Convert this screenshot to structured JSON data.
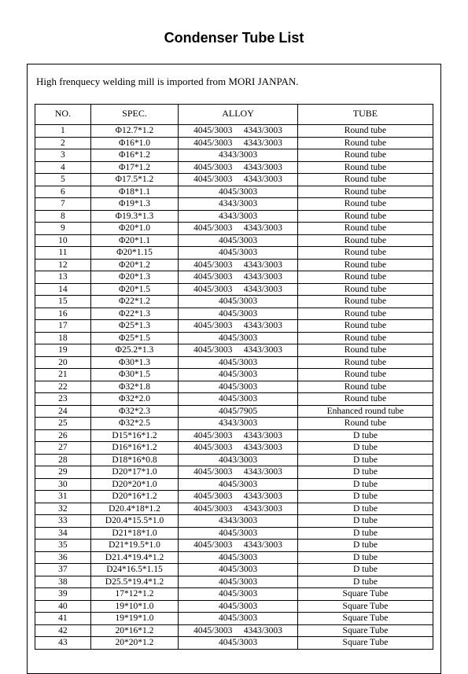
{
  "title": "Condenser Tube List",
  "intro": "High frenquecy welding mill is imported from MORI JANPAN.",
  "table": {
    "columns": [
      "NO.",
      "SPEC.",
      "ALLOY",
      "TUBE"
    ],
    "column_widths_pct": [
      14,
      22,
      30,
      34
    ],
    "header_fontsize": 12,
    "body_fontsize": 11.5,
    "border_color": "#000000",
    "outer_border_width": 1.5,
    "inner_border_width": 0.5,
    "rows": [
      {
        "no": "1",
        "spec": "Φ12.7*1.2",
        "alloy": "4045/3003  4343/3003",
        "tube": "Round tube"
      },
      {
        "no": "2",
        "spec": "Φ16*1.0",
        "alloy": "4045/3003  4343/3003",
        "tube": "Round tube"
      },
      {
        "no": "3",
        "spec": "Φ16*1.2",
        "alloy": "4343/3003",
        "tube": "Round tube"
      },
      {
        "no": "4",
        "spec": "Φ17*1.2",
        "alloy": "4045/3003  4343/3003",
        "tube": "Round tube"
      },
      {
        "no": "5",
        "spec": "Φ17.5*1.2",
        "alloy": "4045/3003  4343/3003",
        "tube": "Round tube"
      },
      {
        "no": "6",
        "spec": "Φ18*1.1",
        "alloy": "4045/3003",
        "tube": "Round tube"
      },
      {
        "no": "7",
        "spec": "Φ19*1.3",
        "alloy": "4343/3003",
        "tube": "Round tube"
      },
      {
        "no": "8",
        "spec": "Φ19.3*1.3",
        "alloy": "4343/3003",
        "tube": "Round tube"
      },
      {
        "no": "9",
        "spec": "Φ20*1.0",
        "alloy": "4045/3003  4343/3003",
        "tube": "Round tube"
      },
      {
        "no": "10",
        "spec": "Φ20*1.1",
        "alloy": "4045/3003",
        "tube": "Round tube"
      },
      {
        "no": "11",
        "spec": "Φ20*1.15",
        "alloy": "4045/3003",
        "tube": "Round tube"
      },
      {
        "no": "12",
        "spec": "Φ20*1.2",
        "alloy": "4045/3003  4343/3003",
        "tube": "Round tube"
      },
      {
        "no": "13",
        "spec": "Φ20*1.3",
        "alloy": "4045/3003  4343/3003",
        "tube": "Round tube"
      },
      {
        "no": "14",
        "spec": "Φ20*1.5",
        "alloy": "4045/3003  4343/3003",
        "tube": "Round tube"
      },
      {
        "no": "15",
        "spec": "Φ22*1.2",
        "alloy": "4045/3003",
        "tube": "Round tube"
      },
      {
        "no": "16",
        "spec": "Φ22*1.3",
        "alloy": "4045/3003",
        "tube": "Round tube"
      },
      {
        "no": "17",
        "spec": "Φ25*1.3",
        "alloy": "4045/3003  4343/3003",
        "tube": "Round tube"
      },
      {
        "no": "18",
        "spec": "Φ25*1.5",
        "alloy": "4045/3003",
        "tube": "Round tube"
      },
      {
        "no": "19",
        "spec": "Φ25.2*1.3",
        "alloy": "4045/3003  4343/3003",
        "tube": "Round tube"
      },
      {
        "no": "20",
        "spec": "Φ30*1.3",
        "alloy": "4045/3003",
        "tube": "Round tube"
      },
      {
        "no": "21",
        "spec": "Φ30*1.5",
        "alloy": "4045/3003",
        "tube": "Round tube"
      },
      {
        "no": "22",
        "spec": "Φ32*1.8",
        "alloy": "4045/3003",
        "tube": "Round tube"
      },
      {
        "no": "23",
        "spec": "Φ32*2.0",
        "alloy": "4045/3003",
        "tube": "Round tube"
      },
      {
        "no": "24",
        "spec": "Φ32*2.3",
        "alloy": "4045/7905",
        "tube": "Enhanced round tube"
      },
      {
        "no": "25",
        "spec": "Φ32*2.5",
        "alloy": "4343/3003",
        "tube": "Round tube"
      },
      {
        "no": "26",
        "spec": "D15*16*1.2",
        "alloy": "4045/3003  4343/3003",
        "tube": "D tube"
      },
      {
        "no": "27",
        "spec": "D16*16*1.2",
        "alloy": "4045/3003  4343/3003",
        "tube": "D tube"
      },
      {
        "no": "28",
        "spec": "D18*16*0.8",
        "alloy": "4043/3003",
        "tube": "D tube"
      },
      {
        "no": "29",
        "spec": "D20*17*1.0",
        "alloy": "4045/3003  4343/3003",
        "tube": "D tube"
      },
      {
        "no": "30",
        "spec": "D20*20*1.0",
        "alloy": "4045/3003",
        "tube": "D tube"
      },
      {
        "no": "31",
        "spec": "D20*16*1.2",
        "alloy": "4045/3003  4343/3003",
        "tube": "D tube"
      },
      {
        "no": "32",
        "spec": "D20.4*18*1.2",
        "alloy": "4045/3003  4343/3003",
        "tube": "D tube"
      },
      {
        "no": "33",
        "spec": "D20.4*15.5*1.0",
        "alloy": "4343/3003",
        "tube": "D tube"
      },
      {
        "no": "34",
        "spec": "D21*18*1.0",
        "alloy": "4045/3003",
        "tube": "D tube"
      },
      {
        "no": "35",
        "spec": "D21*19.5*1.0",
        "alloy": "4045/3003  4343/3003",
        "tube": "D tube"
      },
      {
        "no": "36",
        "spec": "D21.4*19.4*1.2",
        "alloy": "4045/3003",
        "tube": "D tube"
      },
      {
        "no": "37",
        "spec": "D24*16.5*1.15",
        "alloy": "4045/3003",
        "tube": "D tube"
      },
      {
        "no": "38",
        "spec": "D25.5*19.4*1.2",
        "alloy": "4045/3003",
        "tube": "D tube"
      },
      {
        "no": "39",
        "spec": "17*12*1.2",
        "alloy": "4045/3003",
        "tube": "Square Tube"
      },
      {
        "no": "40",
        "spec": "19*10*1.0",
        "alloy": "4045/3003",
        "tube": "Square Tube"
      },
      {
        "no": "41",
        "spec": "19*19*1.0",
        "alloy": "4045/3003",
        "tube": "Square Tube"
      },
      {
        "no": "42",
        "spec": "20*16*1.2",
        "alloy": "4045/3003  4343/3003",
        "tube": "Square Tube"
      },
      {
        "no": "43",
        "spec": "20*20*1.2",
        "alloy": "4045/3003",
        "tube": "Square Tube"
      }
    ]
  },
  "colors": {
    "background": "#ffffff",
    "text": "#000000"
  },
  "typography": {
    "title_font": "Arial",
    "title_fontsize": 18,
    "title_weight": "bold",
    "body_font": "Times New Roman",
    "intro_fontsize": 13
  }
}
